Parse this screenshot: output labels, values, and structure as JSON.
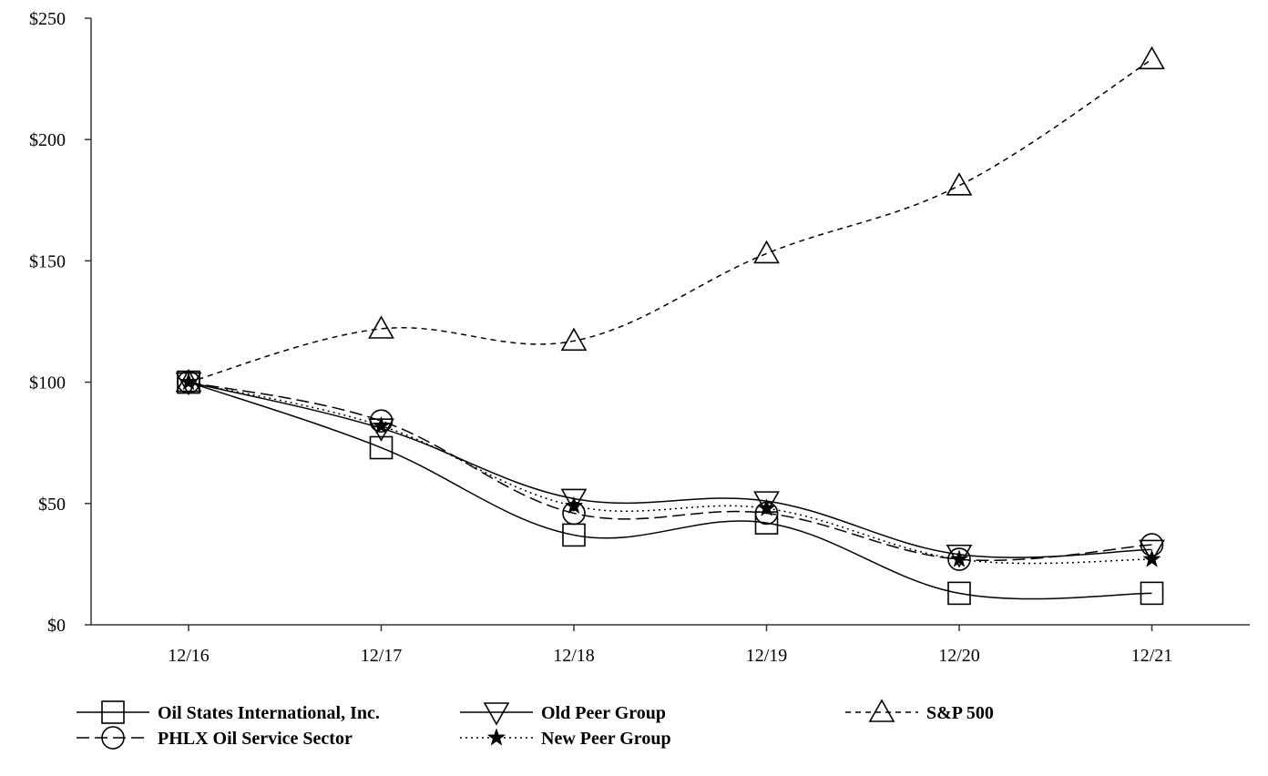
{
  "chart_data": {
    "type": "line",
    "title": "",
    "xlabel": "",
    "ylabel": "",
    "categories": [
      "12/16",
      "12/17",
      "12/18",
      "12/19",
      "12/20",
      "12/21"
    ],
    "ylim": [
      0,
      250
    ],
    "yticks": [
      0,
      50,
      100,
      150,
      200,
      250
    ],
    "ytick_labels": [
      "$0",
      "$50",
      "$100",
      "$150",
      "$200",
      "$250"
    ],
    "grid": false,
    "legend_position": "bottom",
    "series": [
      {
        "key": "ois",
        "name": "Oil States International, Inc.",
        "marker": "square",
        "dash": "solid",
        "values": [
          100,
          73,
          37,
          42,
          13,
          13
        ]
      },
      {
        "key": "old",
        "name": "Old Peer Group",
        "marker": "triangle-down",
        "dash": "solid",
        "values": [
          100,
          81,
          52,
          51,
          29,
          31
        ]
      },
      {
        "key": "sp",
        "name": "S&P 500",
        "marker": "triangle-up",
        "dash": "dashed",
        "values": [
          100,
          122,
          117,
          153,
          181,
          233
        ]
      },
      {
        "key": "phlx",
        "name": "PHLX Oil Service Sector",
        "marker": "circle",
        "dash": "longdash",
        "values": [
          100,
          84,
          46,
          46,
          27,
          33
        ]
      },
      {
        "key": "new",
        "name": "New Peer Group",
        "marker": "star",
        "dash": "dotted",
        "values": [
          100,
          82,
          49,
          48,
          27,
          27
        ]
      }
    ]
  }
}
